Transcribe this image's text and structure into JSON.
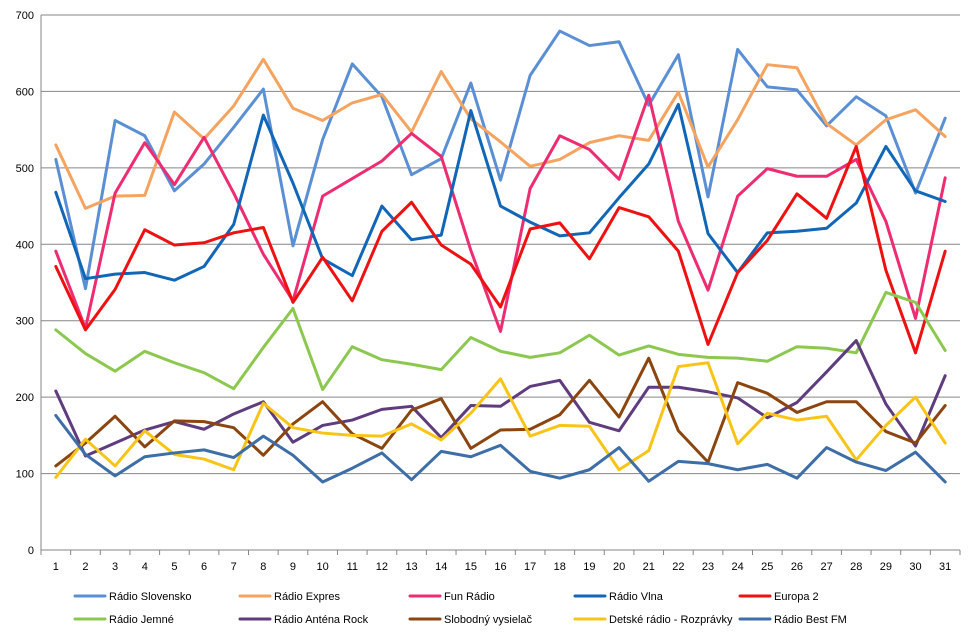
{
  "chart_data": {
    "type": "line",
    "title": "",
    "xlabel": "",
    "ylabel": "",
    "ylim": [
      0,
      700
    ],
    "yticks": [
      0,
      100,
      200,
      300,
      400,
      500,
      600,
      700
    ],
    "x": [
      1,
      2,
      3,
      4,
      5,
      6,
      7,
      8,
      9,
      10,
      11,
      12,
      13,
      14,
      15,
      16,
      17,
      18,
      19,
      20,
      21,
      22,
      23,
      24,
      25,
      26,
      27,
      28,
      29,
      30,
      31
    ],
    "grid": "horizontal",
    "legend_position": "bottom",
    "series": [
      {
        "name": "Rádio Slovensko",
        "color": "#5B8FD4",
        "values": [
          511,
          342,
          562,
          542,
          470,
          505,
          553,
          603,
          398,
          537,
          636,
          593,
          491,
          512,
          611,
          484,
          621,
          679,
          660,
          665,
          582,
          648,
          462,
          655,
          606,
          602,
          555,
          593,
          568,
          467,
          565
        ]
      },
      {
        "name": "Rádio Expres",
        "color": "#F4A460",
        "values": [
          530,
          447,
          463,
          464,
          573,
          538,
          581,
          642,
          578,
          562,
          585,
          596,
          547,
          626,
          564,
          534,
          502,
          511,
          533,
          542,
          536,
          599,
          501,
          563,
          635,
          631,
          558,
          530,
          563,
          576,
          541
        ]
      },
      {
        "name": "Fun Rádio",
        "color": "#EE2C72",
        "values": [
          391,
          290,
          467,
          533,
          478,
          540,
          467,
          387,
          326,
          463,
          486,
          509,
          545,
          515,
          392,
          286,
          473,
          542,
          524,
          485,
          595,
          430,
          340,
          463,
          499,
          489,
          489,
          511,
          430,
          303,
          487
        ]
      },
      {
        "name": "Rádio Vlna",
        "color": "#1166B8",
        "values": [
          468,
          355,
          361,
          363,
          353,
          371,
          426,
          569,
          480,
          381,
          359,
          450,
          406,
          412,
          575,
          450,
          429,
          411,
          415,
          461,
          505,
          583,
          414,
          363,
          415,
          417,
          421,
          454,
          528,
          470,
          456
        ]
      },
      {
        "name": "Europa 2",
        "color": "#EE1111",
        "values": [
          371,
          288,
          341,
          419,
          399,
          402,
          415,
          422,
          324,
          383,
          326,
          417,
          455,
          399,
          374,
          318,
          420,
          428,
          381,
          448,
          436,
          391,
          269,
          363,
          405,
          466,
          434,
          528,
          366,
          258,
          391
        ]
      },
      {
        "name": "Rádio Jemné",
        "color": "#8CC850",
        "values": [
          288,
          257,
          234,
          260,
          245,
          232,
          211,
          265,
          316,
          210,
          266,
          249,
          243,
          236,
          278,
          260,
          252,
          258,
          281,
          255,
          267,
          256,
          252,
          251,
          247,
          266,
          264,
          258,
          337,
          324,
          261
        ]
      },
      {
        "name": "Rádio Anténa Rock",
        "color": "#5E3C7E",
        "values": [
          208,
          123,
          140,
          157,
          168,
          158,
          178,
          194,
          141,
          163,
          170,
          184,
          188,
          147,
          189,
          188,
          214,
          222,
          167,
          156,
          213,
          213,
          207,
          199,
          173,
          193,
          233,
          274,
          191,
          136,
          228
        ]
      },
      {
        "name": "Slobodný vysielač",
        "color": "#8B4510",
        "values": [
          110,
          140,
          175,
          135,
          169,
          168,
          160,
          124,
          165,
          194,
          152,
          133,
          183,
          198,
          133,
          157,
          158,
          177,
          222,
          174,
          251,
          156,
          115,
          219,
          205,
          180,
          194,
          194,
          155,
          140,
          189
        ]
      },
      {
        "name": "Detské rádio - Rozprávky",
        "color": "#F9C418",
        "values": [
          95,
          145,
          110,
          156,
          125,
          119,
          105,
          192,
          160,
          153,
          150,
          149,
          165,
          144,
          179,
          224,
          149,
          163,
          162,
          105,
          130,
          240,
          245,
          139,
          179,
          170,
          175,
          118,
          163,
          200,
          140
        ]
      },
      {
        "name": "Rádio Best FM",
        "color": "#3E6EA7",
        "values": [
          176,
          125,
          97,
          122,
          127,
          131,
          121,
          149,
          124,
          89,
          107,
          127,
          92,
          129,
          122,
          137,
          103,
          94,
          105,
          134,
          90,
          116,
          113,
          105,
          112,
          94,
          134,
          115,
          104,
          128,
          89
        ]
      }
    ]
  }
}
